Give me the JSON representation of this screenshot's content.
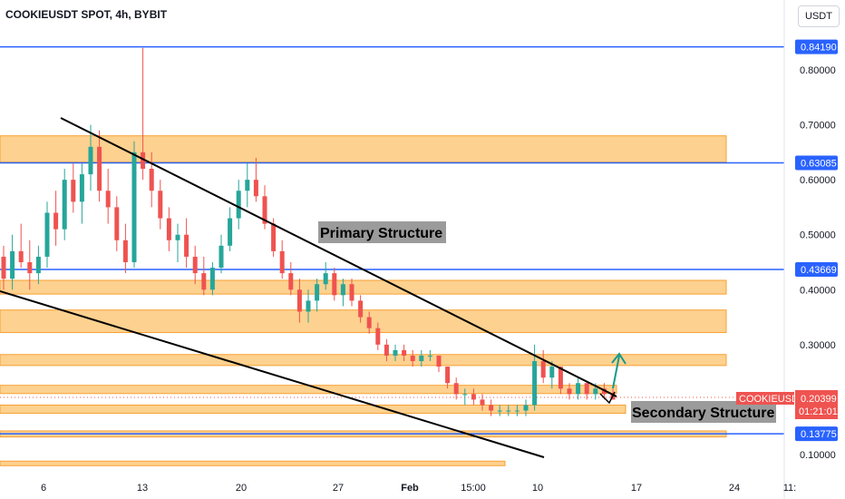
{
  "header": {
    "title": "COOKIEUSDT SPOT, 4h, BYBIT",
    "currency": "USDT"
  },
  "colors": {
    "up": "#26a69a",
    "down": "#ef5350",
    "level_line": "#2962ff",
    "zone_fill": "#fdd18f",
    "zone_border": "#f7a134",
    "trendline": "#000000",
    "arrow": "#159a8c",
    "annotation_bg": "#9b9b9b"
  },
  "chart_data": {
    "type": "candlestick",
    "title": "COOKIEUSDT SPOT, 4h, BYBIT",
    "y_axis": {
      "ticks": [
        "0.80000",
        "0.70000",
        "0.60000",
        "0.50000",
        "0.40000",
        "0.30000",
        "0.10000"
      ]
    },
    "x_axis": {
      "ticks": [
        "6",
        "13",
        "20",
        "27",
        "Feb",
        "15:00",
        "10",
        "17",
        "24",
        "11:"
      ]
    },
    "horizontal_levels": [
      {
        "label": "0.84190",
        "price": 0.8419
      },
      {
        "label": "0.63085",
        "price": 0.63085
      },
      {
        "label": "0.43669",
        "price": 0.43669
      },
      {
        "label": "0.13775",
        "price": 0.13775
      }
    ],
    "current_price": {
      "symbol": "COOKIEUSDT",
      "label": "0.20399",
      "price": 0.20399,
      "countdown": "01:21:01"
    },
    "zones": [
      {
        "low": 0.632,
        "high": 0.68
      },
      {
        "low": 0.392,
        "high": 0.417
      },
      {
        "low": 0.322,
        "high": 0.363
      },
      {
        "low": 0.262,
        "high": 0.282
      },
      {
        "low": 0.211,
        "high": 0.226
      },
      {
        "low": 0.175,
        "high": 0.19
      },
      {
        "low": 0.132,
        "high": 0.143
      },
      {
        "low": 0.081,
        "high": 0.088
      }
    ],
    "annotations": [
      "Primary Structure",
      "Secondary Structure"
    ],
    "candles_approx": [
      [
        0.46,
        0.48,
        0.4,
        0.42
      ],
      [
        0.42,
        0.5,
        0.4,
        0.47
      ],
      [
        0.47,
        0.52,
        0.44,
        0.45
      ],
      [
        0.45,
        0.49,
        0.4,
        0.43
      ],
      [
        0.43,
        0.48,
        0.41,
        0.46
      ],
      [
        0.46,
        0.56,
        0.44,
        0.54
      ],
      [
        0.54,
        0.58,
        0.48,
        0.51
      ],
      [
        0.51,
        0.62,
        0.49,
        0.6
      ],
      [
        0.6,
        0.63,
        0.54,
        0.56
      ],
      [
        0.56,
        0.63,
        0.52,
        0.61
      ],
      [
        0.61,
        0.7,
        0.58,
        0.66
      ],
      [
        0.66,
        0.69,
        0.56,
        0.58
      ],
      [
        0.58,
        0.62,
        0.52,
        0.55
      ],
      [
        0.55,
        0.57,
        0.47,
        0.49
      ],
      [
        0.49,
        0.52,
        0.43,
        0.45
      ],
      [
        0.45,
        0.67,
        0.44,
        0.65
      ],
      [
        0.65,
        0.84,
        0.6,
        0.62
      ],
      [
        0.62,
        0.65,
        0.55,
        0.58
      ],
      [
        0.58,
        0.6,
        0.51,
        0.53
      ],
      [
        0.53,
        0.55,
        0.47,
        0.49
      ],
      [
        0.49,
        0.52,
        0.45,
        0.5
      ],
      [
        0.5,
        0.53,
        0.44,
        0.46
      ],
      [
        0.46,
        0.48,
        0.41,
        0.43
      ],
      [
        0.43,
        0.46,
        0.39,
        0.4
      ],
      [
        0.4,
        0.45,
        0.39,
        0.44
      ],
      [
        0.44,
        0.5,
        0.43,
        0.48
      ],
      [
        0.48,
        0.55,
        0.47,
        0.53
      ],
      [
        0.53,
        0.6,
        0.51,
        0.58
      ],
      [
        0.58,
        0.63,
        0.55,
        0.6
      ],
      [
        0.6,
        0.64,
        0.56,
        0.57
      ],
      [
        0.57,
        0.59,
        0.51,
        0.52
      ],
      [
        0.52,
        0.53,
        0.46,
        0.47
      ],
      [
        0.47,
        0.49,
        0.42,
        0.43
      ],
      [
        0.43,
        0.45,
        0.39,
        0.4
      ],
      [
        0.4,
        0.42,
        0.34,
        0.36
      ],
      [
        0.36,
        0.4,
        0.34,
        0.38
      ],
      [
        0.38,
        0.42,
        0.36,
        0.41
      ],
      [
        0.41,
        0.45,
        0.4,
        0.43
      ],
      [
        0.43,
        0.44,
        0.38,
        0.39
      ],
      [
        0.39,
        0.42,
        0.37,
        0.41
      ],
      [
        0.41,
        0.42,
        0.37,
        0.38
      ],
      [
        0.38,
        0.39,
        0.34,
        0.35
      ],
      [
        0.35,
        0.36,
        0.32,
        0.33
      ],
      [
        0.33,
        0.34,
        0.29,
        0.3
      ],
      [
        0.3,
        0.31,
        0.27,
        0.28
      ],
      [
        0.28,
        0.3,
        0.27,
        0.29
      ],
      [
        0.29,
        0.3,
        0.27,
        0.28
      ],
      [
        0.28,
        0.29,
        0.26,
        0.27
      ],
      [
        0.27,
        0.29,
        0.26,
        0.28
      ],
      [
        0.28,
        0.29,
        0.27,
        0.28
      ],
      [
        0.28,
        0.28,
        0.25,
        0.26
      ],
      [
        0.26,
        0.26,
        0.22,
        0.23
      ],
      [
        0.23,
        0.24,
        0.2,
        0.21
      ],
      [
        0.21,
        0.22,
        0.19,
        0.21
      ],
      [
        0.21,
        0.22,
        0.19,
        0.2
      ],
      [
        0.2,
        0.21,
        0.18,
        0.19
      ],
      [
        0.19,
        0.2,
        0.17,
        0.18
      ],
      [
        0.18,
        0.19,
        0.17,
        0.18
      ],
      [
        0.18,
        0.19,
        0.17,
        0.18
      ],
      [
        0.18,
        0.19,
        0.17,
        0.18
      ],
      [
        0.18,
        0.2,
        0.17,
        0.19
      ],
      [
        0.19,
        0.3,
        0.18,
        0.27
      ],
      [
        0.27,
        0.29,
        0.23,
        0.24
      ],
      [
        0.24,
        0.27,
        0.22,
        0.26
      ],
      [
        0.26,
        0.26,
        0.21,
        0.22
      ],
      [
        0.22,
        0.23,
        0.2,
        0.21
      ],
      [
        0.21,
        0.24,
        0.2,
        0.23
      ],
      [
        0.23,
        0.23,
        0.2,
        0.21
      ],
      [
        0.21,
        0.23,
        0.2,
        0.22
      ],
      [
        0.22,
        0.23,
        0.2,
        0.21
      ],
      [
        0.21,
        0.22,
        0.2,
        0.2
      ]
    ]
  }
}
